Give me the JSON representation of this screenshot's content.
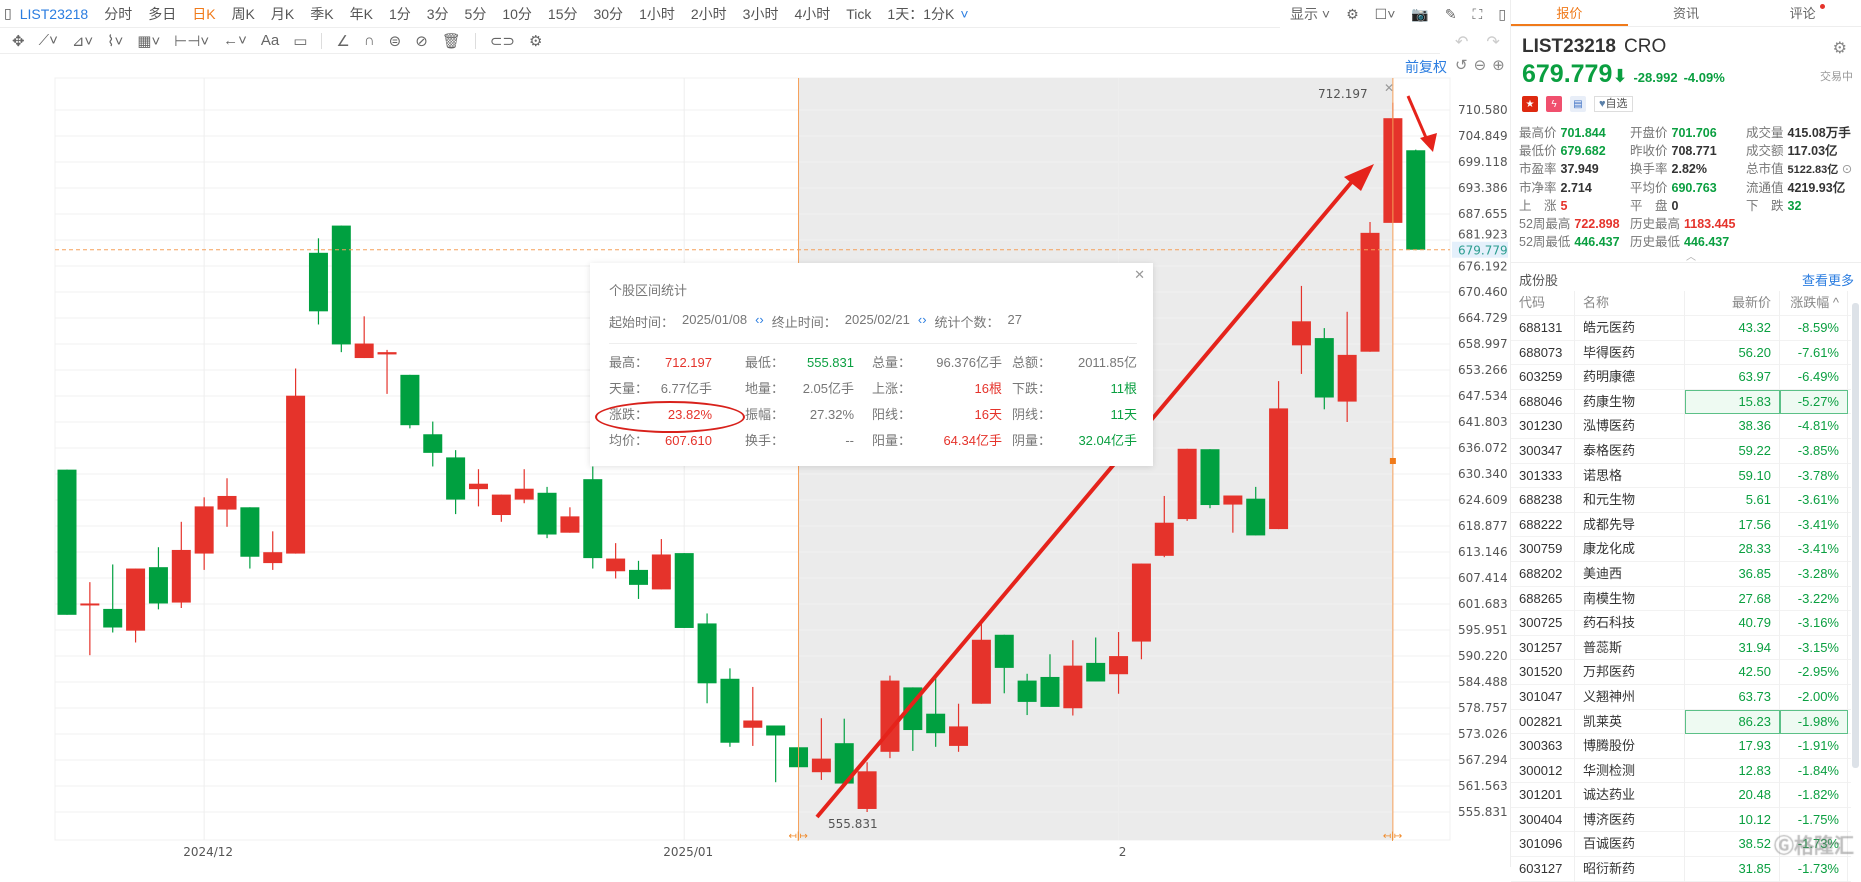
{
  "topbar": {
    "symbol": "LIST23218",
    "intervals": [
      "分时",
      "多日",
      "日K",
      "周K",
      "月K",
      "季K",
      "年K",
      "1分",
      "3分",
      "5分",
      "10分",
      "15分",
      "30分",
      "1小时",
      "2小时",
      "3小时",
      "4小时",
      "Tick",
      "1天：1分K"
    ],
    "active": "日K",
    "display_label": "显示"
  },
  "chart_controls": {
    "adjust": "前复权"
  },
  "chart_data": {
    "type": "candlestick",
    "ylim": [
      555.831,
      710.58
    ],
    "y_ticks": [
      "710.580",
      "704.849",
      "699.118",
      "693.386",
      "687.655",
      "681.923",
      "676.192",
      "670.460",
      "664.729",
      "658.997",
      "653.266",
      "647.534",
      "641.803",
      "636.072",
      "630.340",
      "624.609",
      "618.877",
      "613.146",
      "607.414",
      "601.683",
      "595.951",
      "590.220",
      "584.488",
      "578.757",
      "573.026",
      "567.294",
      "561.563",
      "555.831"
    ],
    "x_labels": [
      {
        "label": "2024/12",
        "index": 7
      },
      {
        "label": "2025/01",
        "index": 28
      },
      {
        "label": "2",
        "index": 47
      }
    ],
    "current_price": "679.779",
    "range_high_label": "712.197",
    "range_low_label": "555.831",
    "selected_range": [
      33,
      59
    ],
    "colors": {
      "up": "#e5332b",
      "down": "#00a040"
    },
    "ohlc": [
      [
        631.3,
        631.3,
        599.3,
        599.3
      ],
      [
        601.5,
        606.5,
        590.4,
        601.8
      ],
      [
        600.6,
        610.4,
        595.4,
        596.5
      ],
      [
        595.8,
        609.5,
        593.2,
        609.5
      ],
      [
        609.8,
        614.2,
        600.5,
        601.8
      ],
      [
        602.0,
        619.8,
        600.8,
        613.6
      ],
      [
        612.8,
        625.2,
        609.2,
        623.2
      ],
      [
        622.5,
        629.4,
        618.7,
        625.5
      ],
      [
        623.0,
        623.0,
        609.5,
        612.1
      ],
      [
        610.7,
        617.7,
        609.2,
        613.1
      ],
      [
        612.8,
        653.6,
        612.8,
        647.6
      ],
      [
        679.1,
        682.3,
        663.3,
        666.2
      ],
      [
        685.1,
        685.1,
        657.2,
        658.9
      ],
      [
        655.9,
        665.1,
        655.9,
        659.1
      ],
      [
        656.7,
        657.7,
        648.0,
        657.2
      ],
      [
        652.2,
        652.2,
        640.4,
        641.1
      ],
      [
        639.1,
        641.9,
        632.0,
        635.0
      ],
      [
        634.0,
        635.6,
        621.5,
        624.7
      ],
      [
        627.0,
        631.4,
        623.2,
        628.2
      ],
      [
        621.3,
        625.8,
        619.8,
        625.8
      ],
      [
        624.7,
        631.4,
        623.9,
        627.1
      ],
      [
        626.2,
        627.5,
        616.2,
        617.0
      ],
      [
        617.4,
        623.0,
        617.4,
        621.0
      ],
      [
        629.2,
        632.0,
        609.5,
        611.8
      ],
      [
        608.9,
        615.1,
        607.3,
        611.7
      ],
      [
        609.2,
        611.2,
        602.8,
        605.9
      ],
      [
        604.9,
        616.0,
        604.9,
        612.6
      ],
      [
        612.9,
        612.9,
        596.4,
        596.4
      ],
      [
        597.4,
        599.6,
        579.8,
        584.2
      ],
      [
        585.2,
        587.5,
        570.2,
        571.1
      ],
      [
        574.4,
        583.4,
        570.4,
        576.0
      ],
      [
        574.9,
        574.9,
        562.4,
        572.7
      ],
      [
        570.1,
        570.1,
        565.7,
        565.7
      ],
      [
        564.6,
        576.5,
        562.9,
        567.6
      ],
      [
        571.0,
        576.4,
        562.1,
        562.1
      ],
      [
        556.5,
        566.8,
        555.831,
        564.8
      ],
      [
        569.1,
        585.9,
        567.7,
        584.8
      ],
      [
        583.3,
        583.3,
        569.3,
        573.9
      ],
      [
        577.5,
        585.9,
        570.2,
        573.2
      ],
      [
        570.4,
        579.7,
        569.1,
        574.7
      ],
      [
        579.7,
        598.3,
        579.7,
        593.8
      ],
      [
        594.9,
        594.9,
        582.0,
        587.6
      ],
      [
        584.8,
        586.3,
        577.2,
        580.1
      ],
      [
        585.6,
        590.6,
        579.0,
        579.0
      ],
      [
        578.7,
        593.7,
        577.1,
        588.1
      ],
      [
        588.7,
        594.3,
        584.6,
        584.6
      ],
      [
        586.2,
        595.5,
        581.9,
        590.2
      ],
      [
        593.4,
        610.6,
        589.5,
        610.6
      ],
      [
        612.3,
        625.5,
        612.0,
        619.6
      ],
      [
        620.4,
        635.9,
        620.0,
        635.9
      ],
      [
        635.8,
        635.8,
        622.8,
        623.5
      ],
      [
        623.6,
        625.6,
        617.4,
        625.6
      ],
      [
        624.9,
        627.5,
        616.8,
        616.8
      ],
      [
        618.2,
        650.8,
        618.2,
        644.8
      ],
      [
        658.7,
        671.8,
        652.4,
        664.0
      ],
      [
        660.3,
        662.5,
        644.6,
        647.2
      ],
      [
        646.3,
        666.1,
        641.8,
        656.6
      ],
      [
        657.3,
        685.9,
        657.3,
        683.5
      ],
      [
        685.7,
        712.197,
        685.7,
        708.771
      ],
      [
        701.706,
        701.844,
        679.682,
        679.779
      ]
    ]
  },
  "popup": {
    "title": "个股区间统计",
    "start_label": "起始时间：",
    "start": "2025/01/08",
    "end_label": "终止时间：",
    "end": "2025/02/21",
    "count_label": "统计个数：",
    "count": "27",
    "rows": [
      [
        {
          "l": "最高：",
          "v": "712.197",
          "c": "red"
        },
        {
          "l": "最低：",
          "v": "555.831",
          "c": "green"
        },
        {
          "l": "总量：",
          "v": "96.376亿手",
          "c": ""
        },
        {
          "l": "总额：",
          "v": "2011.85亿",
          "c": ""
        }
      ],
      [
        {
          "l": "天量：",
          "v": "6.77亿手",
          "c": ""
        },
        {
          "l": "地量：",
          "v": "2.05亿手",
          "c": ""
        },
        {
          "l": "上涨：",
          "v": "16根",
          "c": "red"
        },
        {
          "l": "下跌：",
          "v": "11根",
          "c": "green"
        }
      ],
      [
        {
          "l": "涨跌：",
          "v": "23.82%",
          "c": "red"
        },
        {
          "l": "振幅：",
          "v": "27.32%",
          "c": ""
        },
        {
          "l": "阳线：",
          "v": "16天",
          "c": "red"
        },
        {
          "l": "阴线：",
          "v": "11天",
          "c": "green"
        }
      ],
      [
        {
          "l": "均价：",
          "v": "607.610",
          "c": "red"
        },
        {
          "l": "换手：",
          "v": "--",
          "c": ""
        },
        {
          "l": "阳量：",
          "v": "64.34亿手",
          "c": "red"
        },
        {
          "l": "阴量：",
          "v": "32.04亿手",
          "c": "green"
        }
      ]
    ]
  },
  "panel": {
    "tabs": [
      "报价",
      "资讯",
      "评论"
    ],
    "symbol": "LIST23218",
    "name": "CRO",
    "price": "679.779",
    "change": "-28.992",
    "change_pct": "-4.09%",
    "status": "交易中",
    "fav_label": "自选",
    "stats": [
      {
        "l": "最高价",
        "v": "701.844",
        "c": "green"
      },
      {
        "l": "开盘价",
        "v": "701.706",
        "c": "green"
      },
      {
        "l": "成交量",
        "v": "415.08万手",
        "c": ""
      },
      {
        "l": "最低价",
        "v": "679.682",
        "c": "green"
      },
      {
        "l": "昨收价",
        "v": "708.771",
        "c": ""
      },
      {
        "l": "成交额",
        "v": "117.03亿",
        "c": ""
      },
      {
        "l": "市盈率",
        "v": "37.949",
        "c": ""
      },
      {
        "l": "换手率",
        "v": "2.82%",
        "c": ""
      },
      {
        "l": "总市值",
        "v": "5122.83亿",
        "c": ""
      },
      {
        "l": "市净率",
        "v": "2.714",
        "c": ""
      },
      {
        "l": "平均价",
        "v": "690.763",
        "c": "green"
      },
      {
        "l": "流通值",
        "v": "4219.93亿",
        "c": ""
      },
      {
        "l": "上　涨",
        "v": "5",
        "c": "red"
      },
      {
        "l": "平　盘",
        "v": "0",
        "c": ""
      },
      {
        "l": "下　跌",
        "v": "32",
        "c": "green"
      },
      {
        "l": "52周最高",
        "v": "722.898",
        "c": "red"
      },
      {
        "l": "历史最高",
        "v": "1183.445",
        "c": "red"
      },
      {
        "l": "",
        "v": "",
        "c": ""
      },
      {
        "l": "52周最低",
        "v": "446.437",
        "c": "green"
      },
      {
        "l": "历史最低",
        "v": "446.437",
        "c": "green"
      },
      {
        "l": "",
        "v": "",
        "c": ""
      }
    ],
    "constituents_title": "成份股",
    "more": "查看更多",
    "columns": [
      "代码",
      "名称",
      "最新价",
      "涨跌幅 ^"
    ],
    "rows": [
      [
        "688131",
        "皓元医药",
        "43.32",
        "-8.59%"
      ],
      [
        "688073",
        "毕得医药",
        "56.20",
        "-7.61%"
      ],
      [
        "603259",
        "药明康德",
        "63.97",
        "-6.49%"
      ],
      [
        "688046",
        "药康生物",
        "15.83",
        "-5.27%"
      ],
      [
        "301230",
        "泓博医药",
        "38.36",
        "-4.81%"
      ],
      [
        "300347",
        "泰格医药",
        "59.22",
        "-3.85%"
      ],
      [
        "301333",
        "诺思格",
        "59.10",
        "-3.78%"
      ],
      [
        "688238",
        "和元生物",
        "5.61",
        "-3.61%"
      ],
      [
        "688222",
        "成都先导",
        "17.56",
        "-3.41%"
      ],
      [
        "300759",
        "康龙化成",
        "28.33",
        "-3.41%"
      ],
      [
        "688202",
        "美迪西",
        "36.85",
        "-3.28%"
      ],
      [
        "688265",
        "南模生物",
        "27.68",
        "-3.22%"
      ],
      [
        "300725",
        "药石科技",
        "40.79",
        "-3.16%"
      ],
      [
        "301257",
        "普蕊斯",
        "31.94",
        "-3.15%"
      ],
      [
        "301520",
        "万邦医药",
        "42.50",
        "-2.95%"
      ],
      [
        "301047",
        "义翘神州",
        "63.73",
        "-2.00%"
      ],
      [
        "002821",
        "凯莱英",
        "86.23",
        "-1.98%"
      ],
      [
        "300363",
        "博腾股份",
        "17.93",
        "-1.91%"
      ],
      [
        "300012",
        "华测检测",
        "12.83",
        "-1.84%"
      ],
      [
        "301201",
        "诚达药业",
        "20.48",
        "-1.82%"
      ],
      [
        "300404",
        "博济医药",
        "10.12",
        "-1.75%"
      ],
      [
        "301096",
        "百诚医药",
        "38.52",
        "-1.73%"
      ],
      [
        "603127",
        "昭衍新药",
        "31.85",
        "-1.73%"
      ]
    ],
    "highlighted_rows": [
      3,
      16
    ]
  },
  "watermark": "格隆汇"
}
